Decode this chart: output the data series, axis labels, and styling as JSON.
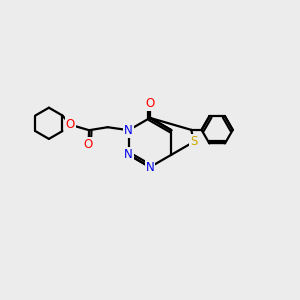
{
  "bg_color": "#ececec",
  "atom_colors": {
    "C": "#000000",
    "N": "#0000ee",
    "O": "#ff0000",
    "S": "#ccaa00"
  },
  "bond_color": "#000000",
  "bond_width": 1.6,
  "font_size": 8.5
}
